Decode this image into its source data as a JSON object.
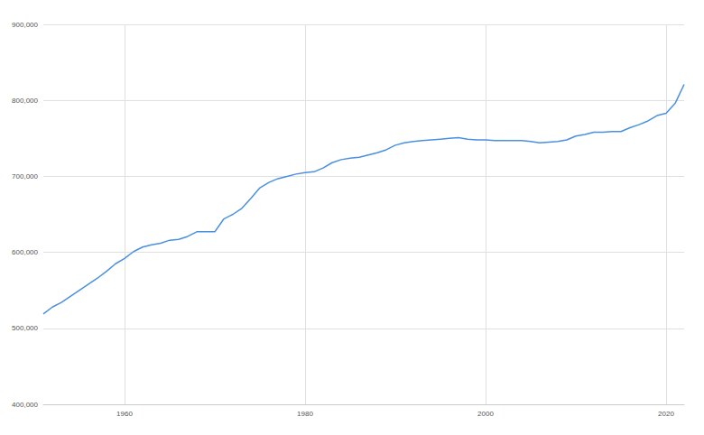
{
  "chart_data": {
    "type": "line",
    "x": [
      1951,
      1952,
      1953,
      1954,
      1955,
      1956,
      1957,
      1958,
      1959,
      1960,
      1961,
      1962,
      1963,
      1964,
      1965,
      1966,
      1967,
      1968,
      1969,
      1970,
      1971,
      1972,
      1973,
      1974,
      1975,
      1976,
      1977,
      1978,
      1979,
      1980,
      1981,
      1982,
      1983,
      1984,
      1985,
      1986,
      1987,
      1988,
      1989,
      1990,
      1991,
      1992,
      1993,
      1994,
      1995,
      1996,
      1997,
      1998,
      1999,
      2000,
      2001,
      2002,
      2003,
      2004,
      2005,
      2006,
      2007,
      2008,
      2009,
      2010,
      2011,
      2012,
      2013,
      2014,
      2015,
      2016,
      2017,
      2018,
      2019,
      2020,
      2021,
      2022
    ],
    "values": [
      519000,
      528000,
      534000,
      542000,
      550000,
      558000,
      566000,
      575000,
      585000,
      592000,
      601000,
      607000,
      610000,
      612000,
      616000,
      617000,
      621000,
      627000,
      627000,
      627000,
      644000,
      650000,
      658000,
      671000,
      685000,
      692000,
      697000,
      700000,
      703000,
      705000,
      706000,
      711000,
      718000,
      722000,
      724000,
      725000,
      728000,
      731000,
      735000,
      741000,
      744000,
      746000,
      747000,
      748000,
      749000,
      750000,
      751000,
      749000,
      748000,
      748000,
      747000,
      747000,
      747000,
      747000,
      746000,
      744000,
      745000,
      746000,
      748000,
      753000,
      755000,
      758000,
      758000,
      759000,
      759000,
      764000,
      768000,
      773000,
      780000,
      783000,
      796000,
      821000
    ],
    "color": "#4a90e2",
    "xlim": [
      1951,
      2022
    ],
    "xticks": [
      1960,
      1980,
      2000,
      2020
    ],
    "ylim": [
      400000,
      900000
    ],
    "yticks": [
      {
        "value": 400000,
        "label": "400,000"
      },
      {
        "value": 500000,
        "label": "500,000"
      },
      {
        "value": 600000,
        "label": "600,000"
      },
      {
        "value": 700000,
        "label": "700,000"
      },
      {
        "value": 800000,
        "label": "800,000"
      },
      {
        "value": 900000,
        "label": "900,000"
      }
    ],
    "grid": true
  }
}
